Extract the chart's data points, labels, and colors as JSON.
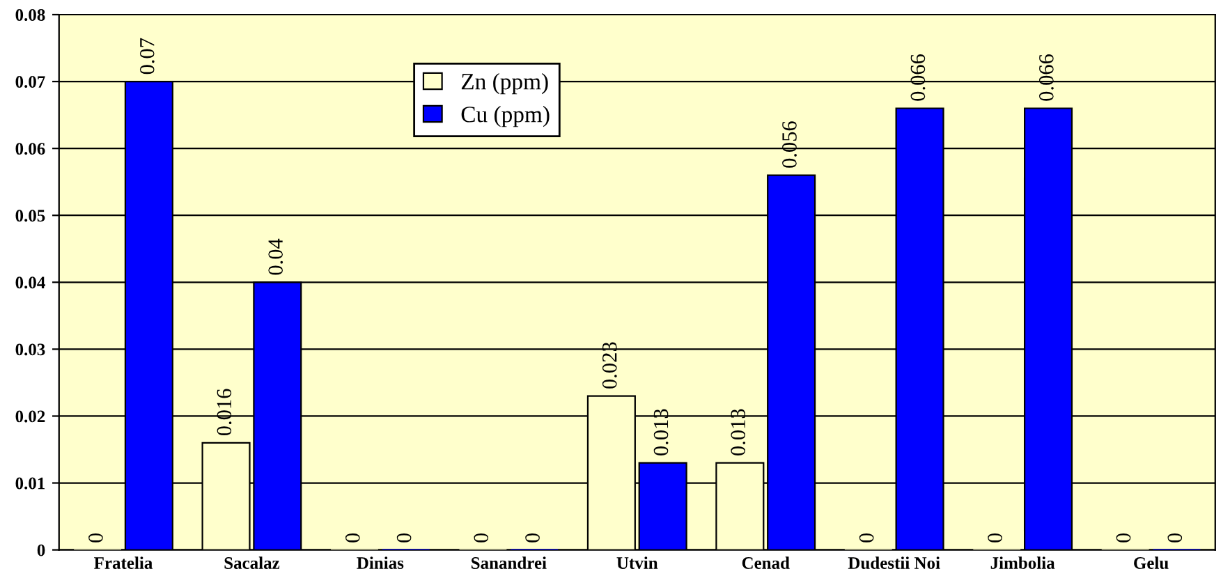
{
  "chart_data": {
    "type": "bar",
    "categories": [
      "Fratelia",
      "Sacalaz",
      "Dinias",
      "Sanandrei",
      "Utvin",
      "Cenad",
      "Dudestii Noi",
      "Jimbolia",
      "Gelu"
    ],
    "series": [
      {
        "name": "Zn (ppm)",
        "color": "#ffffcc",
        "values": [
          0,
          0.016,
          0,
          0,
          0.023,
          0.013,
          0,
          0,
          0
        ]
      },
      {
        "name": "Cu (ppm)",
        "color": "#0000ff",
        "values": [
          0.07,
          0.04,
          0,
          0,
          0.013,
          0.056,
          0.066,
          0.066,
          0
        ]
      }
    ],
    "ylim": [
      0,
      0.08
    ],
    "yticks": [
      {
        "value": 0,
        "label": "0"
      },
      0.01,
      0.02,
      0.03,
      0.04,
      0.05,
      0.06,
      0.07,
      0.08
    ],
    "grid": "y",
    "legend": "top",
    "data_labels": true
  }
}
